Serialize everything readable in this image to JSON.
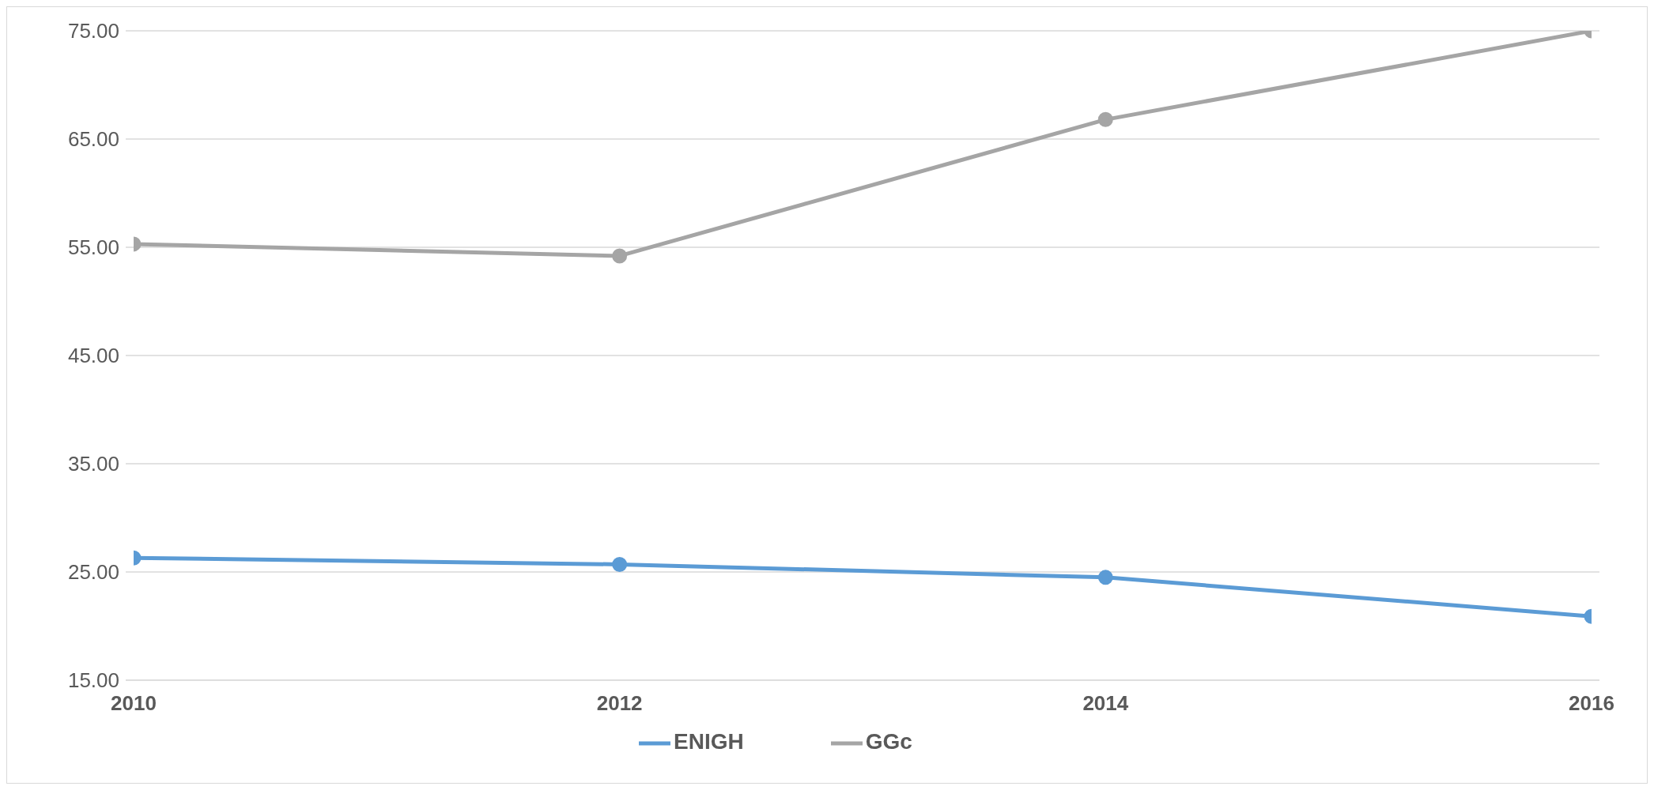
{
  "chart_data": {
    "type": "line",
    "categories": [
      "2010",
      "2012",
      "2014",
      "2016"
    ],
    "series": [
      {
        "name": "ENIGH",
        "color": "#5b9bd5",
        "values": [
          26.3,
          25.7,
          24.5,
          20.9
        ]
      },
      {
        "name": "GGc",
        "color": "#a5a5a5",
        "values": [
          55.3,
          54.2,
          66.8,
          75.0
        ]
      }
    ],
    "ylim": [
      15,
      75
    ],
    "yticks": [
      {
        "value": 15,
        "label": "15.00"
      },
      {
        "value": 25,
        "label": "25.00"
      },
      {
        "value": 35,
        "label": "35.00"
      },
      {
        "value": 45,
        "label": "45.00"
      },
      {
        "value": 55,
        "label": "55.00"
      },
      {
        "value": 65,
        "label": "65.00"
      },
      {
        "value": 75,
        "label": "75.00"
      }
    ],
    "grid": "y",
    "legend": "bottom",
    "marker": "circle",
    "line_style": "solid"
  }
}
